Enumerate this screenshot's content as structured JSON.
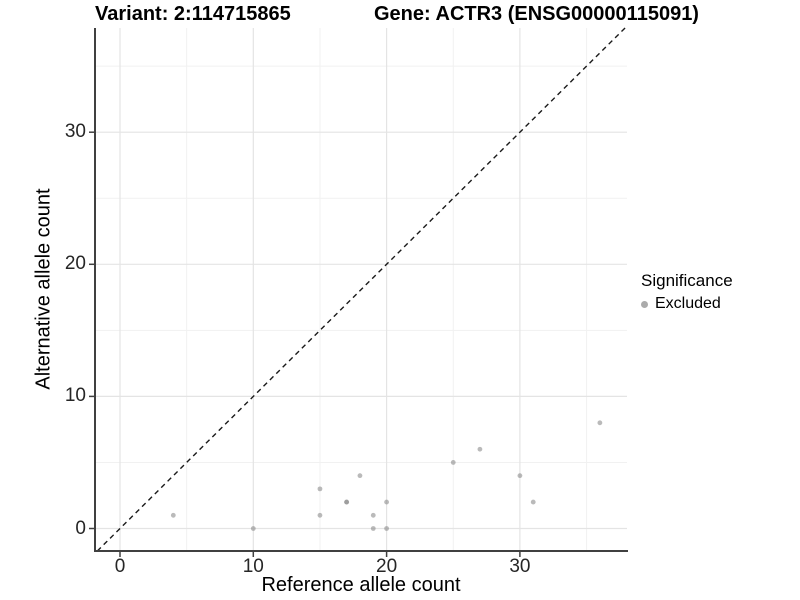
{
  "chart_data": {
    "type": "scatter",
    "title_variant": "Variant: 2:114715865",
    "title_gene": "Gene: ACTR3 (ENSG00000115091)",
    "xlabel": "Reference allele count",
    "ylabel": "Alternative allele count",
    "x_ticks": [
      "0",
      "10",
      "20",
      "30"
    ],
    "x_tick_values": [
      0,
      10,
      20,
      30
    ],
    "y_ticks": [
      "0",
      "10",
      "20",
      "30"
    ],
    "y_tick_values": [
      0,
      10,
      20,
      30
    ],
    "x_minor_values": [
      5,
      15,
      25,
      35
    ],
    "y_minor_values": [
      5,
      15,
      25,
      35
    ],
    "xlim": [
      -1.9,
      38.1
    ],
    "ylim": [
      -1.8,
      37.9
    ],
    "grid": true,
    "identity_line": {
      "style": "dashed",
      "slope": 1,
      "intercept": 0,
      "color": "#1a1a1a"
    },
    "series": [
      {
        "name": "Excluded",
        "color": "#8c8c8c",
        "opacity": 0.6,
        "points": [
          [
            4,
            1
          ],
          [
            10,
            0
          ],
          [
            15,
            1
          ],
          [
            15,
            3
          ],
          [
            17,
            2
          ],
          [
            17,
            2
          ],
          [
            18,
            4
          ],
          [
            19,
            0
          ],
          [
            19,
            1
          ],
          [
            20,
            0
          ],
          [
            20,
            2
          ],
          [
            25,
            5
          ],
          [
            27,
            6
          ],
          [
            30,
            4
          ],
          [
            31,
            2
          ],
          [
            36,
            8
          ]
        ]
      }
    ],
    "legend": {
      "title": "Significance",
      "position": "right",
      "entries": [
        {
          "label": "Excluded",
          "color": "#ababab"
        }
      ]
    },
    "colors": {
      "grid_major": "#e4e4e4",
      "grid_minor": "#f1f1f1",
      "axis_line": "#404040",
      "panel_background": "#ffffff"
    }
  }
}
